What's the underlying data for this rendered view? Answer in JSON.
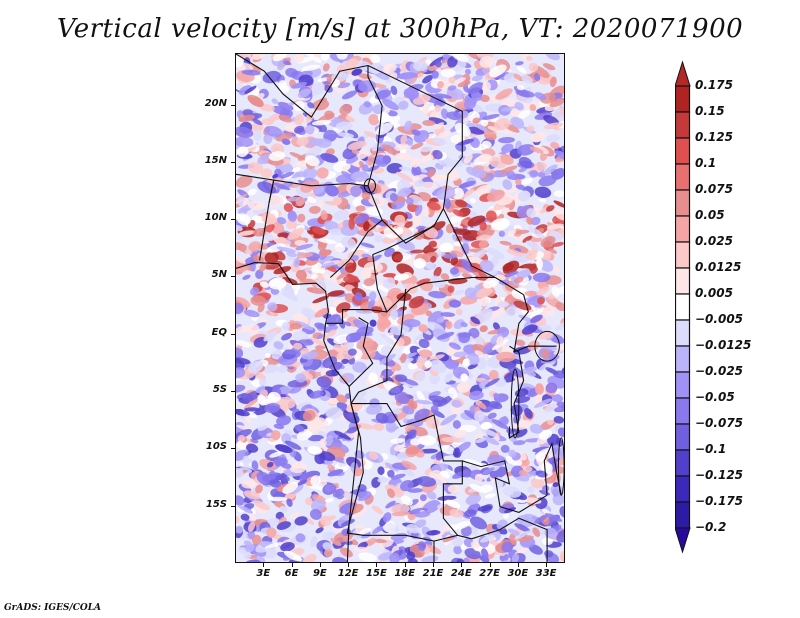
{
  "title": "Vertical velocity [m/s] at 300hPa, VT: 2020071900",
  "credit": "GrADS: IGES/COLA",
  "map": {
    "projection": "latlon",
    "lon_range": [
      0,
      35
    ],
    "lat_range": [
      -20,
      24.5
    ],
    "y_ticks": [
      {
        "lat": 20,
        "label": "20N"
      },
      {
        "lat": 15,
        "label": "15N"
      },
      {
        "lat": 10,
        "label": "10N"
      },
      {
        "lat": 5,
        "label": "5N"
      },
      {
        "lat": 0,
        "label": "EQ"
      },
      {
        "lat": -5,
        "label": "5S"
      },
      {
        "lat": -10,
        "label": "10S"
      },
      {
        "lat": -15,
        "label": "15S"
      }
    ],
    "x_ticks": [
      {
        "lon": 3,
        "label": "3E"
      },
      {
        "lon": 6,
        "label": "6E"
      },
      {
        "lon": 9,
        "label": "9E"
      },
      {
        "lon": 12,
        "label": "12E"
      },
      {
        "lon": 15,
        "label": "15E"
      },
      {
        "lon": 18,
        "label": "18E"
      },
      {
        "lon": 21,
        "label": "21E"
      },
      {
        "lon": 24,
        "label": "24E"
      },
      {
        "lon": 27,
        "label": "27E"
      },
      {
        "lon": 30,
        "label": "30E"
      },
      {
        "lon": 33,
        "label": "33E"
      }
    ]
  },
  "colorbar": {
    "labels": [
      "0.175",
      "0.15",
      "0.125",
      "0.1",
      "0.075",
      "0.05",
      "0.025",
      "0.0125",
      "0.005",
      "−0.005",
      "−0.0125",
      "−0.025",
      "−0.05",
      "−0.075",
      "−0.1",
      "−0.125",
      "−0.175",
      "−0.2"
    ],
    "colors": [
      "#b02323",
      "#c43a3a",
      "#e05050",
      "#e87070",
      "#e88e8e",
      "#f5a5a5",
      "#fcc8c8",
      "#ffe6e6",
      "#ffffff",
      "#dcdcfc",
      "#bcb4fa",
      "#a091f7",
      "#8a78ee",
      "#7060e0",
      "#5040cc",
      "#3c28bb",
      "#2c1ba5"
    ],
    "top_arrow_color": "#b42828",
    "bottom_arrow_color": "#2a0a9e"
  }
}
